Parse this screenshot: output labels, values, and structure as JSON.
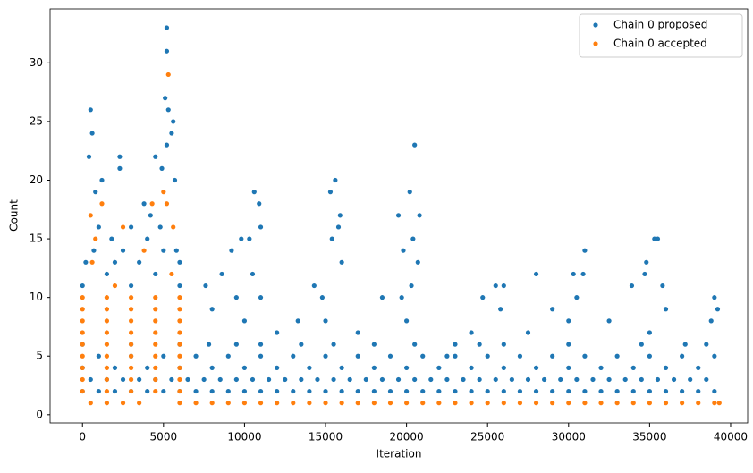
{
  "chart_data": {
    "type": "scatter",
    "xlabel": "Iteration",
    "ylabel": "Count",
    "xlim": [
      -2000,
      41050
    ],
    "ylim": [
      -0.7,
      34.6
    ],
    "xticks": [
      0,
      5000,
      10000,
      15000,
      20000,
      25000,
      30000,
      35000,
      40000
    ],
    "yticks": [
      0,
      5,
      10,
      15,
      20,
      25,
      30
    ],
    "legend": "upper right",
    "series": [
      {
        "name": "Chain 0 proposed",
        "color": "#1f77b4",
        "x": [
          0,
          1000,
          2000,
          3000,
          4000,
          5000,
          6000,
          7000,
          8000,
          9000,
          10000,
          11000,
          12000,
          13000,
          14000,
          15000,
          16000,
          17000,
          18000,
          19000,
          20000,
          21000,
          22000,
          23000,
          24000,
          25000,
          26000,
          27000,
          28000,
          29000,
          30000,
          31000,
          32000,
          33000,
          34000,
          35000,
          36000,
          37000,
          38000,
          39000,
          500,
          1500,
          2500,
          3500,
          4500,
          5500,
          6500,
          7500,
          8500,
          9500,
          10500,
          11500,
          12500,
          13500,
          14500,
          15500,
          16500,
          17500,
          18500,
          19500,
          20500,
          21500,
          22500,
          23500,
          24500,
          25500,
          26500,
          27500,
          28500,
          29500,
          30500,
          31500,
          32500,
          33500,
          34500,
          35500,
          36500,
          37500,
          38500,
          0,
          2000,
          4000,
          6000,
          8000,
          10000,
          12000,
          14000,
          16000,
          18000,
          20000,
          22000,
          24000,
          26000,
          28000,
          30000,
          32000,
          34000,
          36000,
          38000,
          1000,
          3000,
          5000,
          7000,
          9000,
          11000,
          13000,
          15000,
          17000,
          19000,
          21000,
          23000,
          25000,
          27000,
          29000,
          31000,
          33000,
          35000,
          37000,
          39000,
          0,
          3000,
          6000,
          7800,
          9500,
          11000,
          13500,
          15500,
          18000,
          20500,
          24500,
          26000,
          30000,
          34500,
          38500,
          1000,
          500,
          600,
          400,
          2300,
          2300,
          1200,
          800,
          4500,
          5200,
          5200,
          5100,
          5300,
          5600,
          5500,
          5200,
          4900,
          5700,
          3800,
          4200,
          4800,
          3000,
          1800,
          2500,
          5800,
          200,
          3500,
          0,
          1500,
          3000,
          4500,
          6000,
          700,
          5000,
          2000,
          4000,
          6000,
          10600,
          10900,
          11000,
          9800,
          10300,
          9200,
          8600,
          7600,
          15300,
          15600,
          15900,
          15800,
          15400,
          16000,
          14300,
          13300,
          20500,
          20200,
          20800,
          19500,
          20400,
          19800,
          20700,
          18500,
          25500,
          26000,
          24700,
          28000,
          30300,
          31000,
          30900,
          29000,
          35500,
          35300,
          34800,
          35800,
          34700,
          33900,
          39000,
          39200,
          38800,
          37200,
          23000,
          22500,
          24000,
          27500,
          32500,
          12000,
          17000,
          8000,
          9500,
          11000,
          14800,
          19700,
          25800,
          30500,
          36000,
          10000,
          15000,
          20000,
          30000,
          35000,
          10500,
          20300
        ],
        "values": [
          2,
          2,
          2,
          2,
          2,
          2,
          2,
          2,
          2,
          2,
          2,
          2,
          2,
          2,
          2,
          2,
          2,
          2,
          2,
          2,
          2,
          2,
          2,
          2,
          2,
          2,
          2,
          2,
          2,
          2,
          2,
          2,
          2,
          2,
          2,
          2,
          2,
          2,
          2,
          2,
          3,
          3,
          3,
          3,
          3,
          3,
          3,
          3,
          3,
          3,
          3,
          3,
          3,
          3,
          3,
          3,
          3,
          3,
          3,
          3,
          3,
          3,
          3,
          3,
          3,
          3,
          3,
          3,
          3,
          3,
          3,
          3,
          3,
          3,
          3,
          3,
          3,
          3,
          3,
          4,
          4,
          4,
          4,
          4,
          4,
          4,
          4,
          4,
          4,
          4,
          4,
          4,
          4,
          4,
          4,
          4,
          4,
          4,
          4,
          5,
          5,
          5,
          5,
          5,
          5,
          5,
          5,
          5,
          5,
          5,
          5,
          5,
          5,
          5,
          5,
          5,
          5,
          5,
          5,
          6,
          6,
          6,
          6,
          6,
          6,
          6,
          6,
          6,
          6,
          6,
          6,
          6,
          6,
          6,
          16,
          26,
          24,
          22,
          22,
          21,
          20,
          19,
          22,
          33,
          31,
          27,
          26,
          25,
          24,
          23,
          21,
          20,
          18,
          17,
          16,
          16,
          15,
          14,
          14,
          13,
          13,
          11,
          12,
          11,
          12,
          11,
          14,
          14,
          13,
          15,
          13,
          19,
          18,
          16,
          15,
          15,
          14,
          12,
          11,
          19,
          20,
          17,
          16,
          15,
          13,
          11,
          8,
          23,
          19,
          17,
          17,
          15,
          14,
          13,
          10,
          11,
          11,
          10,
          12,
          12,
          14,
          12,
          9,
          15,
          15,
          13,
          11,
          12,
          11,
          10,
          9,
          8,
          6,
          6,
          5,
          7,
          7,
          8,
          7,
          7,
          9,
          10,
          10,
          10,
          10,
          9,
          10,
          9,
          8,
          8,
          8,
          8,
          7,
          12,
          11
        ]
      },
      {
        "name": "Chain 0 accepted",
        "color": "#ff7f0e",
        "x": [
          6000,
          7000,
          8000,
          9000,
          10000,
          11000,
          12000,
          13000,
          14000,
          15000,
          16000,
          17000,
          18000,
          19000,
          20000,
          21000,
          22000,
          23000,
          24000,
          25000,
          26000,
          27000,
          28000,
          29000,
          30000,
          31000,
          32000,
          33000,
          34000,
          35000,
          36000,
          37000,
          38000,
          39000,
          500,
          1500,
          2500,
          3500,
          39300,
          0,
          1500,
          3000,
          4500,
          6000,
          0,
          1500,
          3000,
          4500,
          6000,
          0,
          1500,
          3000,
          4500,
          6000,
          0,
          1500,
          3000,
          4500,
          6000,
          0,
          1500,
          3000,
          4500,
          6000,
          0,
          1500,
          3000,
          4500,
          6000,
          0,
          1500,
          3000,
          4500,
          6000,
          0,
          1500,
          3000,
          4500,
          6000,
          0,
          1500,
          3000,
          4500,
          6000,
          5300,
          5000,
          5200,
          1200,
          4300,
          500,
          5600,
          2500,
          800,
          3800,
          600,
          5500,
          2000
        ],
        "values": [
          1,
          1,
          1,
          1,
          1,
          1,
          1,
          1,
          1,
          1,
          1,
          1,
          1,
          1,
          1,
          1,
          1,
          1,
          1,
          1,
          1,
          1,
          1,
          1,
          1,
          1,
          1,
          1,
          1,
          1,
          1,
          1,
          1,
          1,
          1,
          1,
          1,
          1,
          1,
          2,
          2,
          2,
          2,
          2,
          3,
          3,
          3,
          3,
          3,
          4,
          4,
          4,
          4,
          4,
          5,
          5,
          5,
          5,
          5,
          6,
          6,
          6,
          6,
          6,
          7,
          7,
          7,
          7,
          7,
          8,
          8,
          8,
          8,
          8,
          9,
          9,
          9,
          9,
          9,
          10,
          10,
          10,
          10,
          10,
          29,
          19,
          18,
          18,
          18,
          17,
          16,
          16,
          15,
          14,
          13,
          12,
          11
        ]
      }
    ]
  }
}
